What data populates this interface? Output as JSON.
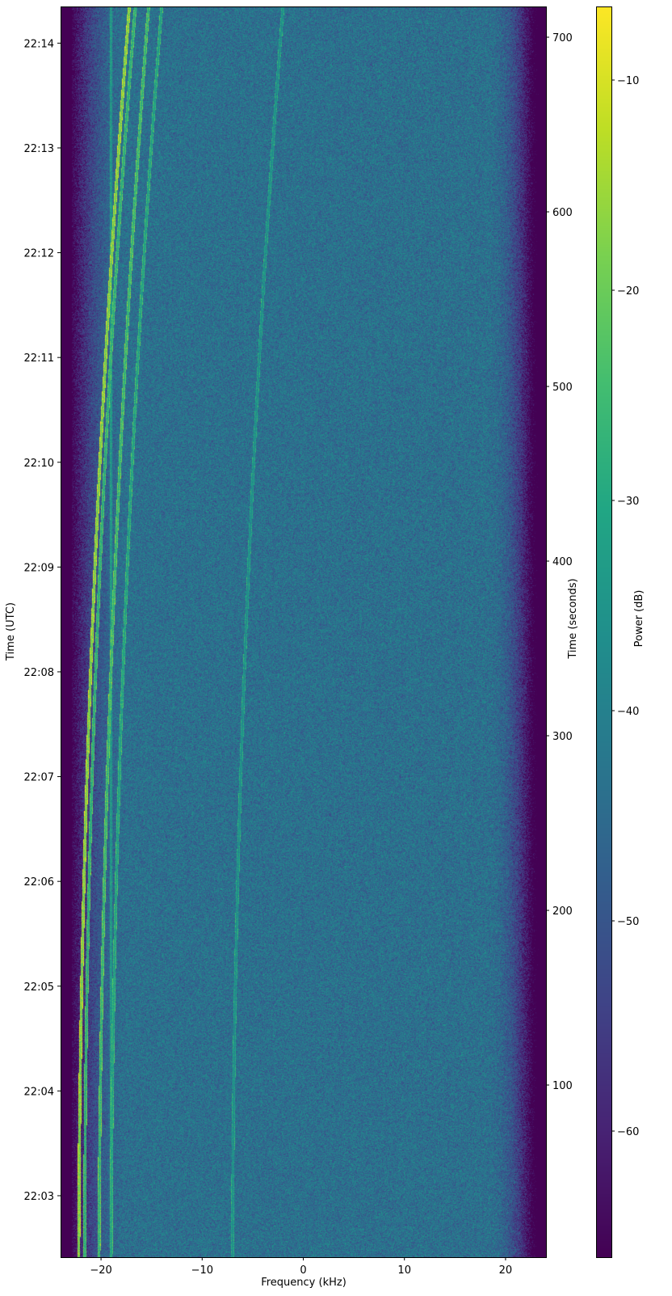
{
  "chart_data": {
    "type": "heatmap",
    "title": "",
    "xlabel": "Frequency (kHz)",
    "ylabel_left": "Time (UTC)",
    "ylabel_right": "Time (seconds)",
    "colorbar_label": "Power (dB)",
    "colormap": "viridis",
    "xlim": [
      -24,
      24
    ],
    "ylim_seconds": [
      1.4,
      717.6
    ],
    "clim_db": [
      -66,
      -6.5
    ],
    "grid": false,
    "x_ticks": [
      -20,
      -10,
      0,
      10,
      20
    ],
    "x_tick_labels": [
      "−20",
      "−10",
      "0",
      "10",
      "20"
    ],
    "left_tick_labels": [
      "22:03",
      "22:04",
      "22:05",
      "22:06",
      "22:07",
      "22:08",
      "22:09",
      "22:10",
      "22:11",
      "22:12",
      "22:13",
      "22:14"
    ],
    "right_ticks": [
      100,
      200,
      300,
      400,
      500,
      600,
      700
    ],
    "right_tick_labels": [
      "100",
      "200",
      "300",
      "400",
      "500",
      "600",
      "700"
    ],
    "colorbar_ticks": [
      -10,
      -20,
      -30,
      -40,
      -50,
      -60
    ],
    "colorbar_tick_labels": [
      "−10",
      "−20",
      "−30",
      "−40",
      "−50",
      "−60"
    ],
    "noise_floor_db": -44,
    "passband_khz": [
      -22,
      21.5
    ],
    "traces": [
      {
        "freq_khz_start": -22.2,
        "freq_khz_mid": -20.6,
        "freq_khz_end": -17.2,
        "peak_db": -22
      },
      {
        "freq_khz_start": -21.6,
        "freq_khz_mid": -20.1,
        "freq_khz_end": -16.6,
        "peak_db": -32
      },
      {
        "freq_khz_start": -20.2,
        "freq_khz_mid": -18.6,
        "freq_khz_end": -15.3,
        "peak_db": -30
      },
      {
        "freq_khz_start": -19.0,
        "freq_khz_mid": -17.4,
        "freq_khz_end": -14.0,
        "peak_db": -35
      },
      {
        "freq_khz_start": -19.0,
        "freq_khz_mid": -19.0,
        "freq_khz_end": -19.0,
        "peak_db": -38
      },
      {
        "freq_khz_start": -7.0,
        "freq_khz_mid": -5.4,
        "freq_khz_end": -2.0,
        "peak_db": -40
      }
    ]
  }
}
